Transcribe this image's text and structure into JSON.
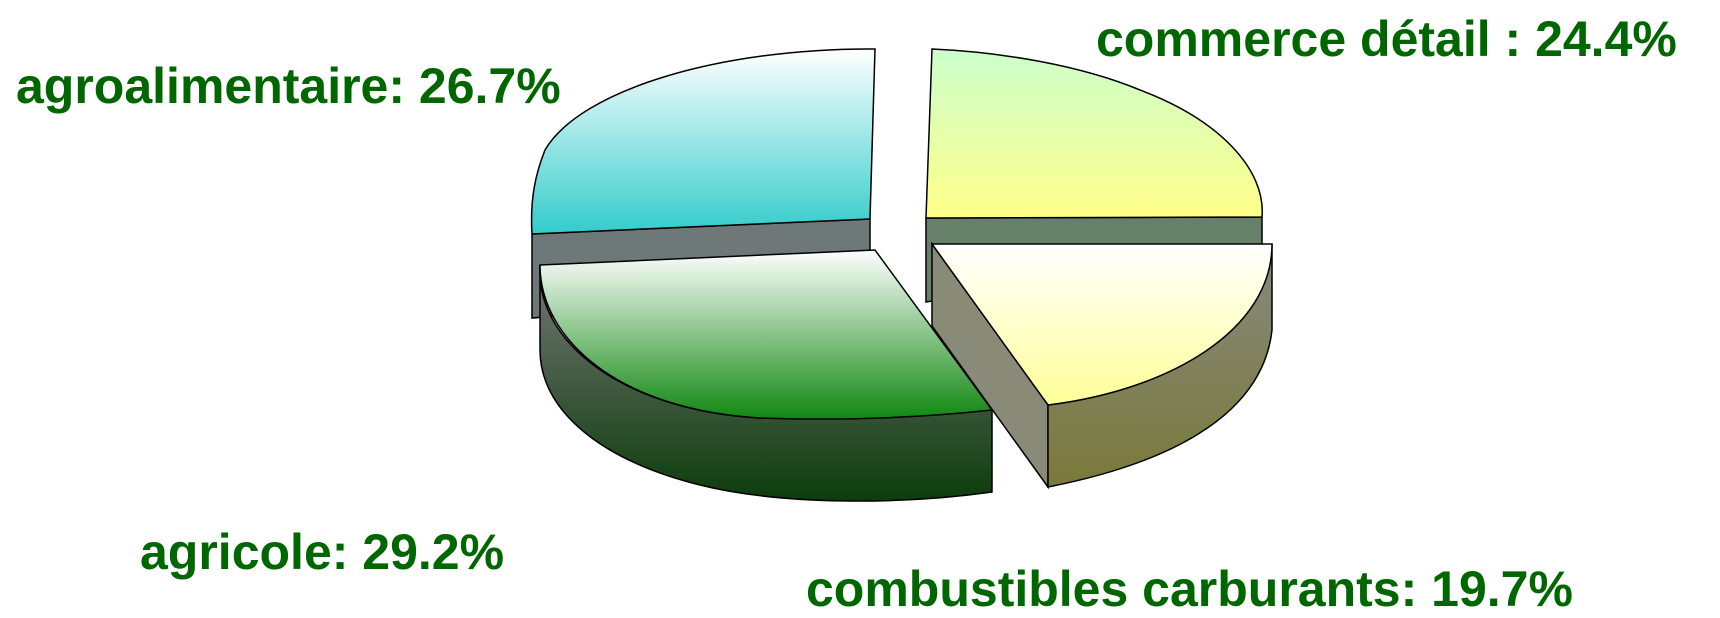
{
  "chart_data": {
    "type": "pie",
    "style": "3d-exploded",
    "title": "",
    "slices": [
      {
        "label": "commerce détail : 24.4%",
        "name": "commerce détail",
        "value": 24.4,
        "color": "#ffff88"
      },
      {
        "label": "combustibles carburants: 19.7%",
        "name": "combustibles carburants",
        "value": 19.7,
        "color": "#fff99a"
      },
      {
        "label": "agricole: 29.2%",
        "name": "agricole",
        "value": 29.2,
        "color": "#1a8a1a"
      },
      {
        "label": "agroalimentaire: 26.7%",
        "name": "agroalimentaire",
        "value": 26.7,
        "color": "#33cccc"
      }
    ],
    "label_color": "#006600",
    "legend": "none"
  }
}
